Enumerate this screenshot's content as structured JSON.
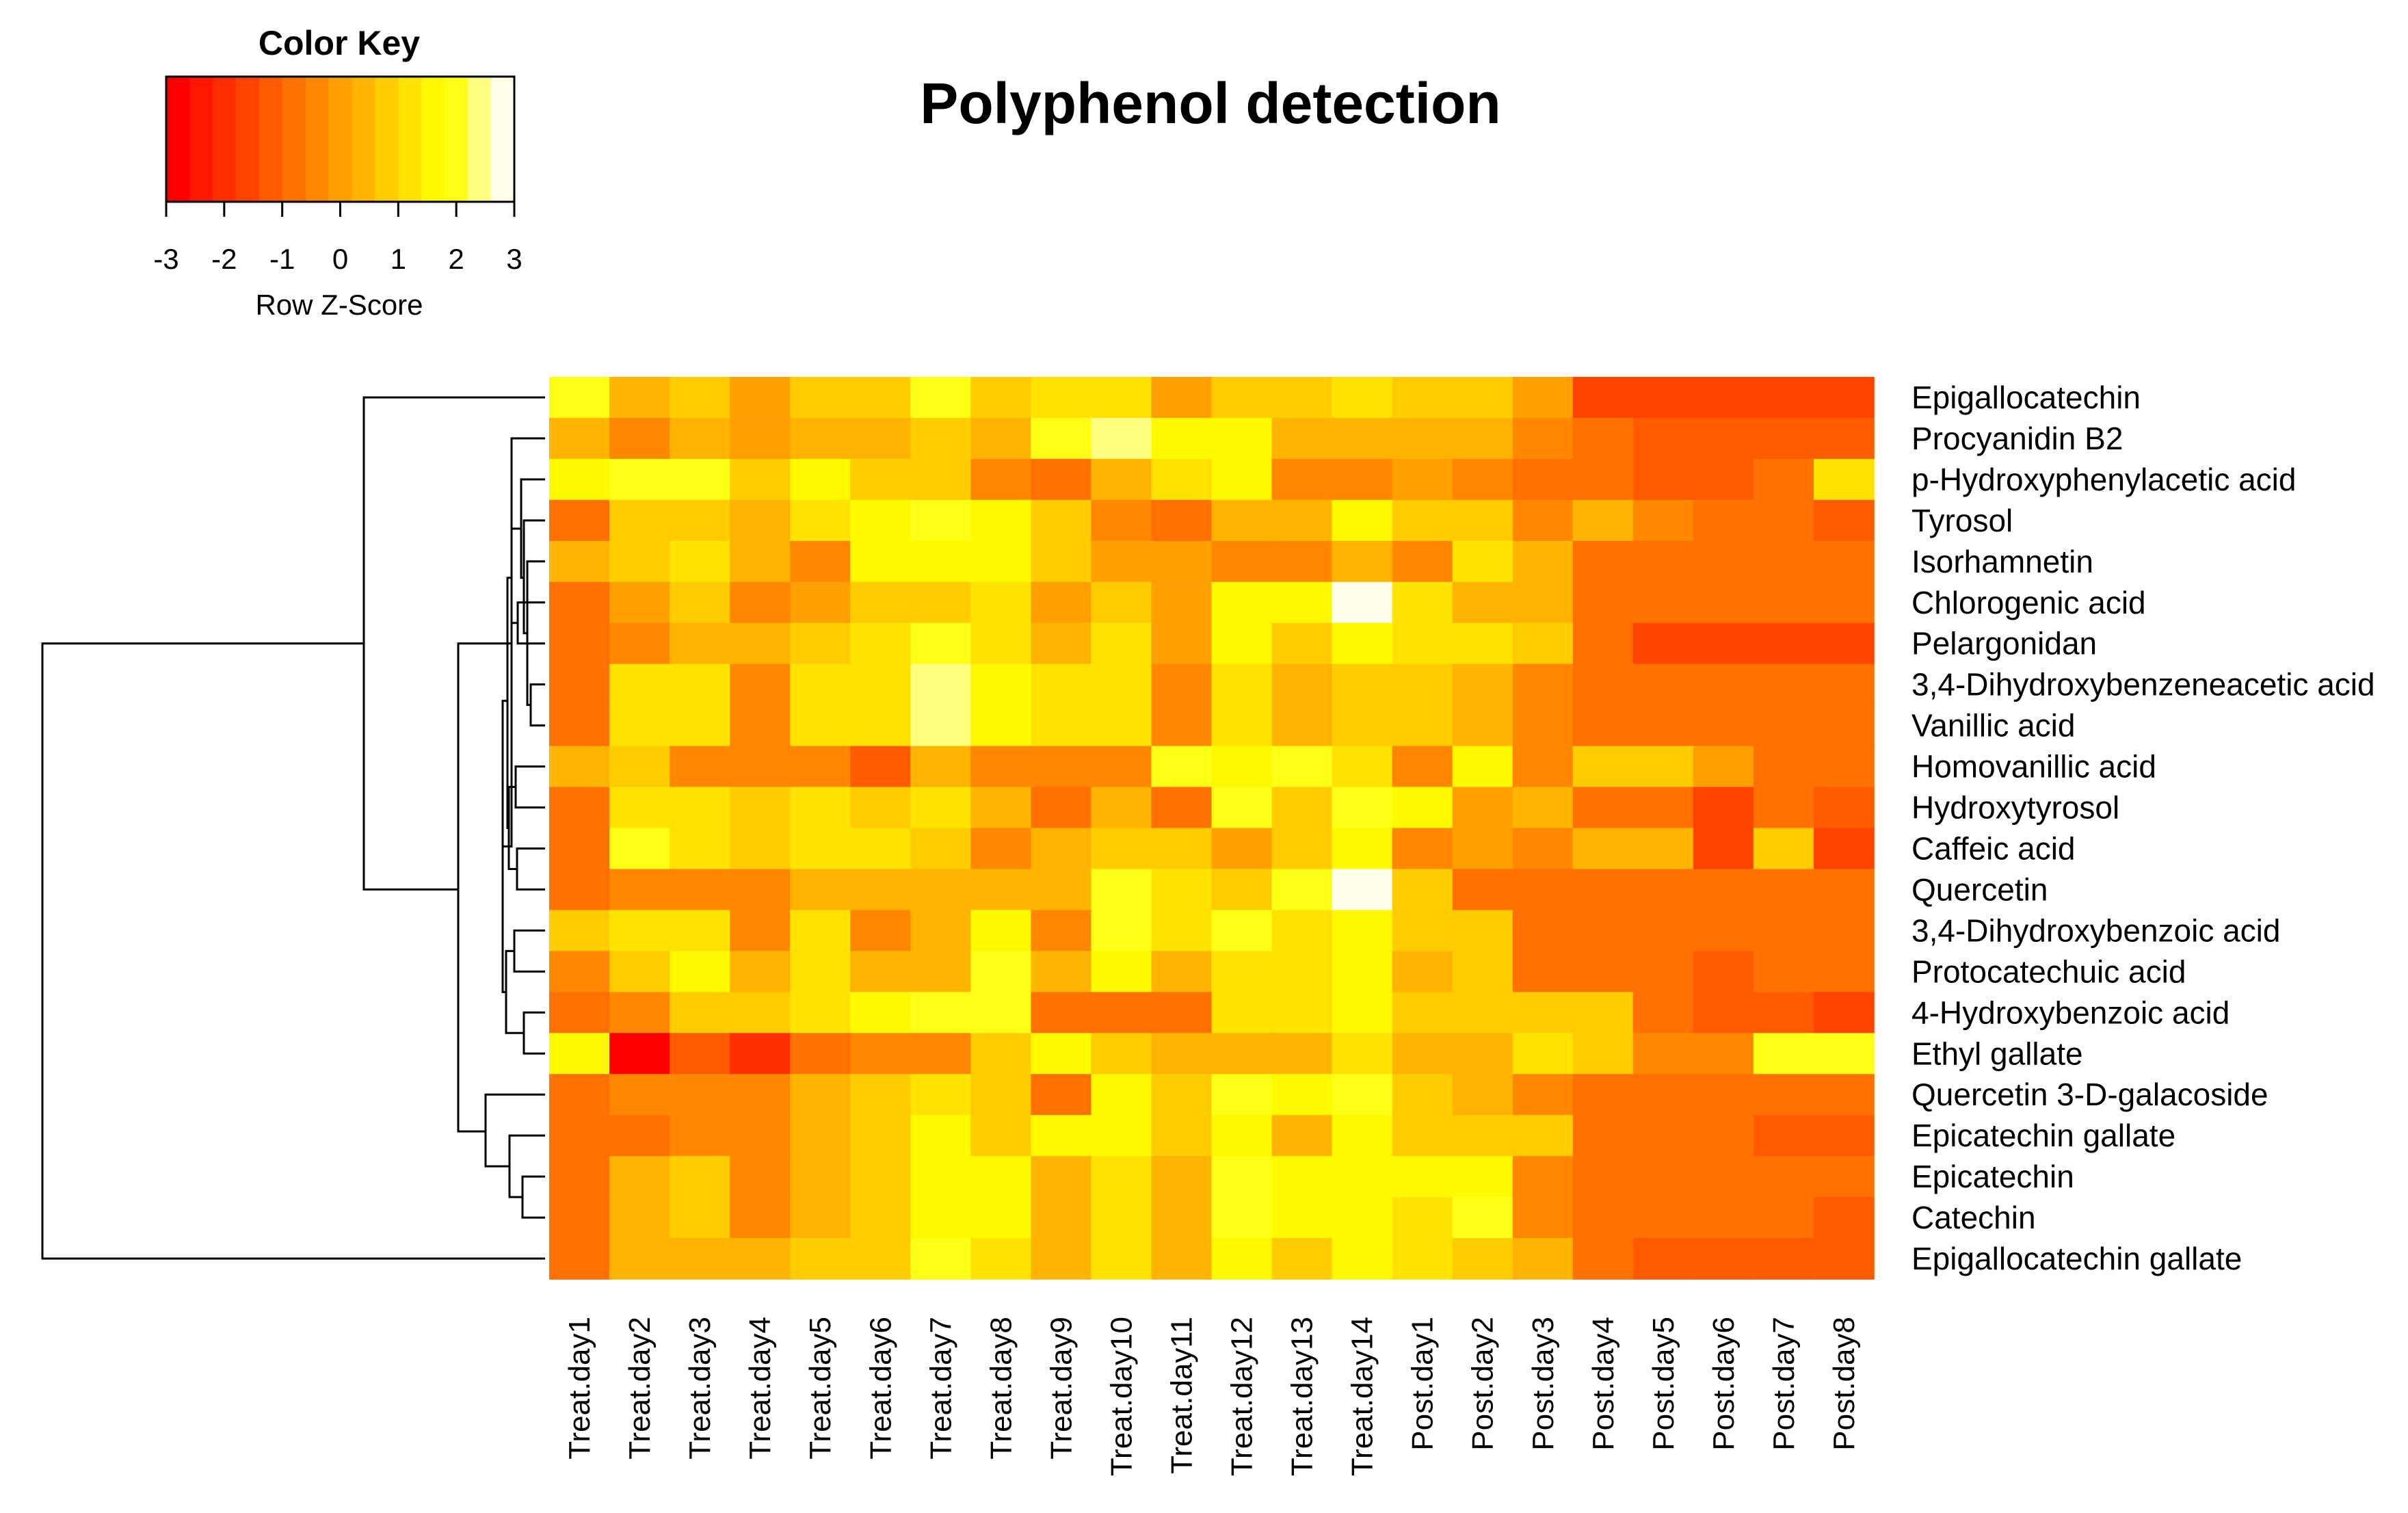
{
  "chart_data": {
    "type": "heatmap",
    "title": "Polyphenol detection",
    "color_key": {
      "title": "Color Key",
      "label": "Row Z-Score",
      "range": [
        -3,
        3
      ],
      "tick_labels": [
        "-3",
        "-2",
        "-1",
        "0",
        "1",
        "2",
        "3"
      ],
      "colors": [
        "#ff0000",
        "#ff1700",
        "#ff2e00",
        "#ff4400",
        "#ff5b00",
        "#ff7100",
        "#ff8800",
        "#ff9f00",
        "#ffb500",
        "#ffcc00",
        "#ffe300",
        "#fff900",
        "#ffff15",
        "#ffff80",
        "#ffffea"
      ]
    },
    "columns": [
      "Treat.day1",
      "Treat.day2",
      "Treat.day3",
      "Treat.day4",
      "Treat.day5",
      "Treat.day6",
      "Treat.day7",
      "Treat.day8",
      "Treat.day9",
      "Treat.day10",
      "Treat.day11",
      "Treat.day12",
      "Treat.day13",
      "Treat.day14",
      "Post.day1",
      "Post.day2",
      "Post.day3",
      "Post.day4",
      "Post.day5",
      "Post.day6",
      "Post.day7",
      "Post.day8"
    ],
    "rows": [
      "Epigallocatechin",
      "Procyanidin B2",
      "p-Hydroxyphenylacetic acid",
      "Tyrosol",
      "Isorhamnetin",
      "Chlorogenic acid",
      "Pelargonidan",
      "3,4-Dihydroxybenzeneacetic acid",
      "Vanillic acid",
      "Homovanillic acid",
      "Hydroxytyrosol",
      "Caffeic acid",
      "Quercetin",
      "3,4-Dihydroxybenzoic acid",
      "Protocatechuic acid",
      "4-Hydroxybenzoic acid",
      "Ethyl gallate",
      "Quercetin 3-D-galacoside",
      "Epicatechin gallate",
      "Epicatechin",
      "Catechin",
      "Epigallocatechin gallate"
    ],
    "z_scores": [
      [
        1.9,
        0.4,
        0.6,
        0.0,
        0.8,
        0.9,
        2.0,
        0.9,
        1.2,
        1.2,
        0.0,
        0.8,
        0.7,
        1.0,
        0.8,
        0.6,
        0.0,
        -1.5,
        -1.5,
        -1.5,
        -1.5,
        -1.5
      ],
      [
        0.2,
        -0.4,
        0.2,
        0.0,
        0.4,
        0.4,
        0.6,
        0.4,
        2.0,
        2.6,
        1.5,
        1.6,
        0.2,
        0.2,
        0.4,
        0.4,
        -0.2,
        -1.0,
        -1.2,
        -1.2,
        -1.2,
        -1.2
      ],
      [
        1.6,
        2.0,
        2.0,
        0.6,
        1.5,
        0.6,
        0.6,
        -0.4,
        -0.6,
        0.4,
        1.0,
        1.5,
        -0.2,
        -0.2,
        0.0,
        -0.4,
        -0.8,
        -1.0,
        -1.2,
        -1.2,
        -0.6,
        1.0
      ],
      [
        -0.8,
        0.6,
        0.6,
        0.4,
        1.2,
        1.6,
        2.0,
        1.7,
        0.6,
        -0.2,
        -0.6,
        0.4,
        0.4,
        1.6,
        0.6,
        0.6,
        -0.2,
        0.2,
        -0.2,
        -1.0,
        -1.0,
        -1.4
      ],
      [
        0.4,
        0.9,
        1.0,
        0.4,
        -0.2,
        1.8,
        1.8,
        1.8,
        0.6,
        0.0,
        0.0,
        -0.2,
        -0.2,
        0.4,
        -0.2,
        1.2,
        0.3,
        -0.8,
        -1.0,
        -1.0,
        -1.0,
        -1.0
      ],
      [
        -0.9,
        0.0,
        0.8,
        -0.4,
        0.0,
        0.9,
        0.9,
        1.2,
        0.0,
        0.7,
        0.0,
        1.6,
        1.6,
        2.7,
        1.2,
        0.4,
        0.2,
        -1.0,
        -1.0,
        -1.0,
        -1.0,
        -1.0
      ],
      [
        -0.9,
        -0.2,
        0.4,
        0.4,
        0.7,
        1.2,
        1.9,
        1.2,
        0.4,
        1.0,
        0.0,
        1.6,
        0.6,
        1.6,
        1.3,
        1.3,
        0.6,
        -1.0,
        -1.5,
        -1.5,
        -1.5,
        -1.5
      ],
      [
        -0.9,
        1.0,
        1.0,
        -0.2,
        1.3,
        1.3,
        2.5,
        1.6,
        1.0,
        1.0,
        -0.2,
        1.2,
        0.2,
        0.6,
        0.6,
        0.2,
        -0.2,
        -1.0,
        -1.0,
        -1.0,
        -1.0,
        -1.0
      ],
      [
        -0.9,
        1.0,
        1.0,
        -0.2,
        1.3,
        1.3,
        2.5,
        1.6,
        1.0,
        1.0,
        -0.2,
        1.2,
        0.2,
        0.6,
        0.6,
        0.2,
        -0.2,
        -1.0,
        -1.0,
        -1.0,
        -1.0,
        -1.0
      ],
      [
        0.4,
        0.6,
        -0.4,
        -0.2,
        -0.4,
        -1.2,
        0.4,
        -0.2,
        -0.4,
        -0.4,
        2.0,
        1.5,
        2.0,
        1.0,
        -0.4,
        1.7,
        -0.4,
        0.8,
        0.6,
        0.0,
        -0.6,
        -0.6
      ],
      [
        -0.9,
        1.0,
        1.0,
        0.9,
        1.3,
        0.8,
        1.2,
        0.4,
        -0.8,
        0.4,
        -0.6,
        2.0,
        0.6,
        2.0,
        1.6,
        0.0,
        0.4,
        -0.6,
        -1.0,
        -1.6,
        -0.6,
        -1.4
      ],
      [
        -0.9,
        2.0,
        1.2,
        0.8,
        1.3,
        1.3,
        0.6,
        -0.4,
        0.2,
        0.6,
        0.6,
        0.0,
        0.9,
        1.7,
        -0.4,
        0.0,
        -0.4,
        0.4,
        0.4,
        -1.5,
        0.8,
        -1.5
      ],
      [
        -0.6,
        -0.2,
        -0.2,
        -0.2,
        0.2,
        0.2,
        0.2,
        0.2,
        0.2,
        2.0,
        1.2,
        0.6,
        2.0,
        2.9,
        0.6,
        -0.6,
        -0.6,
        -0.6,
        -0.6,
        -0.6,
        -0.6,
        -0.6
      ],
      [
        0.6,
        1.0,
        1.0,
        -0.2,
        1.3,
        -0.2,
        0.2,
        1.7,
        -0.2,
        2.0,
        1.2,
        2.0,
        1.0,
        1.7,
        0.6,
        0.6,
        -1.0,
        -1.0,
        -1.0,
        -1.0,
        -1.0,
        -1.0
      ],
      [
        -0.2,
        0.9,
        1.6,
        0.4,
        1.3,
        0.4,
        0.4,
        2.0,
        0.4,
        1.7,
        0.2,
        1.2,
        1.0,
        1.7,
        0.4,
        0.9,
        -0.8,
        -1.0,
        -1.0,
        -1.4,
        -1.0,
        -1.0
      ],
      [
        -0.8,
        -0.2,
        0.8,
        0.8,
        1.3,
        1.7,
        2.0,
        2.0,
        -0.6,
        -0.6,
        -0.6,
        1.0,
        1.0,
        1.7,
        0.8,
        0.8,
        0.6,
        0.6,
        -0.6,
        -1.2,
        -1.2,
        -1.5
      ],
      [
        1.7,
        -2.6,
        -1.2,
        -1.8,
        -0.6,
        -0.2,
        -0.2,
        0.6,
        1.7,
        0.6,
        0.4,
        0.4,
        0.4,
        1.2,
        0.4,
        0.4,
        1.2,
        0.8,
        -0.4,
        -0.4,
        2.0,
        2.0
      ],
      [
        -0.6,
        -0.4,
        -0.4,
        -0.4,
        0.4,
        0.9,
        1.3,
        0.6,
        -0.6,
        1.7,
        0.6,
        2.0,
        1.7,
        2.0,
        0.8,
        0.4,
        -0.2,
        -0.8,
        -0.8,
        -1.0,
        -1.0,
        -1.0
      ],
      [
        -0.8,
        -0.6,
        -0.4,
        -0.4,
        0.4,
        0.9,
        1.8,
        0.6,
        1.7,
        1.7,
        0.6,
        1.6,
        0.2,
        1.8,
        0.8,
        0.8,
        0.8,
        -1.0,
        -1.0,
        -1.0,
        -1.3,
        -1.3
      ],
      [
        -0.8,
        0.2,
        0.6,
        -0.2,
        0.4,
        0.9,
        1.4,
        1.4,
        0.4,
        1.2,
        0.4,
        2.0,
        1.4,
        1.8,
        1.8,
        1.8,
        -0.2,
        -1.0,
        -1.0,
        -1.0,
        -1.0,
        -1.0
      ],
      [
        -0.8,
        0.2,
        0.6,
        -0.2,
        0.4,
        0.9,
        1.4,
        1.4,
        0.4,
        1.2,
        0.4,
        2.0,
        1.4,
        1.8,
        1.2,
        2.0,
        -0.2,
        -1.0,
        -1.0,
        -1.0,
        -1.0,
        -1.4
      ],
      [
        -0.8,
        0.2,
        0.4,
        0.4,
        0.8,
        0.9,
        2.0,
        1.2,
        0.4,
        1.0,
        0.4,
        1.6,
        0.8,
        1.8,
        1.0,
        0.6,
        0.2,
        -1.0,
        -1.4,
        -1.4,
        -1.4,
        -1.4
      ]
    ]
  }
}
